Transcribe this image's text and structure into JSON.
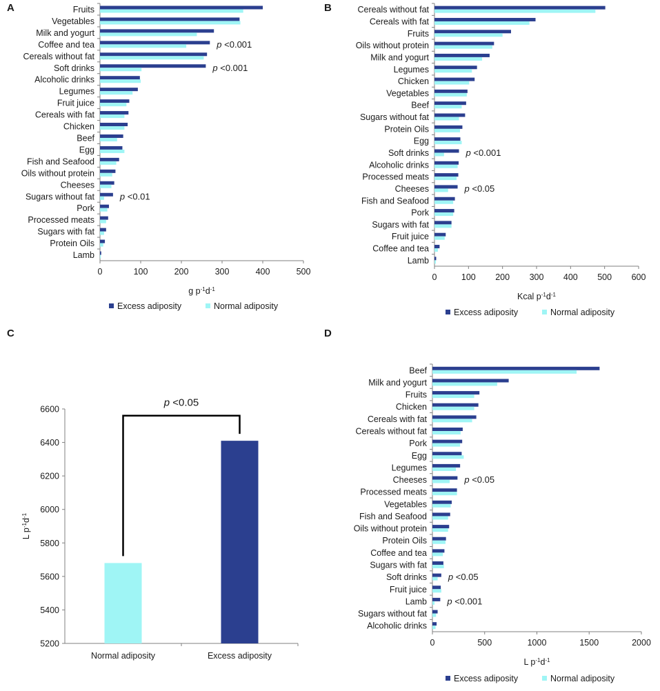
{
  "colors": {
    "excess": "#2B3F8F",
    "normal": "#9FF5F5",
    "axis": "#7f7f7f",
    "text": "#1a1a1a"
  },
  "legend": {
    "excess": "Excess adiposity",
    "normal": "Normal adiposity"
  },
  "chart_data": [
    {
      "id": "A",
      "type": "bar",
      "orientation": "horizontal",
      "xlabel": "g p",
      "xlabel_sup": "-1",
      "xlabel_mid": "d",
      "xlabel_sup2": "-1",
      "xlim": [
        0,
        500
      ],
      "xticks": [
        0,
        100,
        200,
        300,
        400,
        500
      ],
      "categories": [
        "Fruits",
        "Vegetables",
        "Milk and yogurt",
        "Coffee and tea",
        "Cereals without fat",
        "Soft drinks",
        "Alcoholic drinks",
        "Legumes",
        "Fruit juice",
        "Cereals with fat",
        "Chicken",
        "Beef",
        "Egg",
        "Fish and Seafood",
        "Oils without protein",
        "Cheeses",
        "Sugars without fat",
        "Pork",
        "Processed meats",
        "Sugars with fat",
        "Protein Oils",
        "Lamb"
      ],
      "series": [
        {
          "name": "Excess adiposity",
          "values": [
            400,
            343,
            280,
            270,
            263,
            260,
            98,
            93,
            72,
            70,
            68,
            57,
            55,
            47,
            38,
            35,
            32,
            22,
            20,
            15,
            12,
            3
          ]
        },
        {
          "name": "Normal adiposity",
          "values": [
            352,
            345,
            238,
            212,
            255,
            102,
            100,
            80,
            65,
            60,
            60,
            42,
            60,
            40,
            30,
            28,
            10,
            18,
            15,
            10,
            8,
            2
          ]
        }
      ],
      "annotations": [
        {
          "category": "Coffee and tea",
          "text": "<0.001"
        },
        {
          "category": "Soft drinks",
          "text": "<0.001"
        },
        {
          "category": "Sugars without fat",
          "text": "<0.01"
        }
      ],
      "legend_position": "bottom"
    },
    {
      "id": "B",
      "type": "bar",
      "orientation": "horizontal",
      "xlabel": "Kcal p",
      "xlabel_sup": "-1",
      "xlabel_mid": "d",
      "xlabel_sup2": "-1",
      "xlim": [
        0,
        600
      ],
      "xticks": [
        0,
        100,
        200,
        300,
        400,
        500,
        600
      ],
      "categories": [
        "Cereals without fat",
        "Cereals with fat",
        "Fruits",
        "Oils without protein",
        "Milk and yogurt",
        "Legumes",
        "Chicken",
        "Vegetables",
        "Beef",
        "Sugars without fat",
        "Protein Oils",
        "Egg",
        "Soft drinks",
        "Alcoholic drinks",
        "Processed meats",
        "Cheeses",
        "Fish and Seafood",
        "Pork",
        "Sugars with fat",
        "Fruit juice",
        "Coffee and tea",
        "Lamb"
      ],
      "series": [
        {
          "name": "Excess adiposity",
          "values": [
            502,
            297,
            225,
            175,
            162,
            125,
            118,
            97,
            93,
            90,
            82,
            76,
            72,
            71,
            70,
            68,
            60,
            58,
            50,
            33,
            15,
            5
          ]
        },
        {
          "name": "Normal adiposity",
          "values": [
            473,
            279,
            200,
            170,
            140,
            110,
            102,
            95,
            80,
            72,
            75,
            80,
            28,
            68,
            65,
            40,
            55,
            55,
            50,
            30,
            10,
            4
          ]
        }
      ],
      "annotations": [
        {
          "category": "Soft drinks",
          "text": "<0.001"
        },
        {
          "category": "Cheeses",
          "text": "<0.05"
        }
      ],
      "legend_position": "bottom"
    },
    {
      "id": "C",
      "type": "bar",
      "orientation": "vertical",
      "ylabel": "L p",
      "ylabel_sup": "-1",
      "ylabel_mid": "d",
      "ylabel_sup2": "-1",
      "ylim": [
        5200,
        6600
      ],
      "yticks": [
        5200,
        5400,
        5600,
        5800,
        6000,
        6200,
        6400,
        6600
      ],
      "categories": [
        "Normal adiposity",
        "Excess adiposity"
      ],
      "values": [
        5680,
        6410
      ],
      "bracket_text": "<0.05"
    },
    {
      "id": "D",
      "type": "bar",
      "orientation": "horizontal",
      "xlabel": "L p",
      "xlabel_sup": "-1",
      "xlabel_mid": "d",
      "xlabel_sup2": "-1",
      "xlim": [
        0,
        2000
      ],
      "xticks": [
        0,
        500,
        1000,
        1500,
        2000
      ],
      "categories": [
        "Beef",
        "Milk and yogurt",
        "Fruits",
        "Chicken",
        "Cereals with fat",
        "Cereals without fat",
        "Pork",
        "Egg",
        "Legumes",
        "Cheeses",
        "Processed meats",
        "Vegetables",
        "Fish and Seafood",
        "Oils without protein",
        "Protein Oils",
        "Coffee and tea",
        "Sugars with fat",
        "Soft drinks",
        "Fruit juice",
        "Lamb",
        "Sugars without fat",
        "Alcoholic drinks"
      ],
      "series": [
        {
          "name": "Excess adiposity",
          "values": [
            1600,
            730,
            450,
            440,
            420,
            290,
            285,
            280,
            265,
            240,
            235,
            185,
            170,
            160,
            130,
            115,
            105,
            85,
            80,
            75,
            50,
            40
          ]
        },
        {
          "name": "Normal adiposity",
          "values": [
            1380,
            620,
            400,
            400,
            380,
            270,
            265,
            300,
            225,
            165,
            235,
            175,
            150,
            150,
            125,
            100,
            110,
            50,
            85,
            20,
            35,
            30
          ]
        }
      ],
      "annotations": [
        {
          "category": "Cheeses",
          "text": "<0.05"
        },
        {
          "category": "Soft drinks",
          "text": "<0.05"
        },
        {
          "category": "Lamb",
          "text": "<0.001"
        }
      ],
      "legend_position": "bottom"
    }
  ]
}
